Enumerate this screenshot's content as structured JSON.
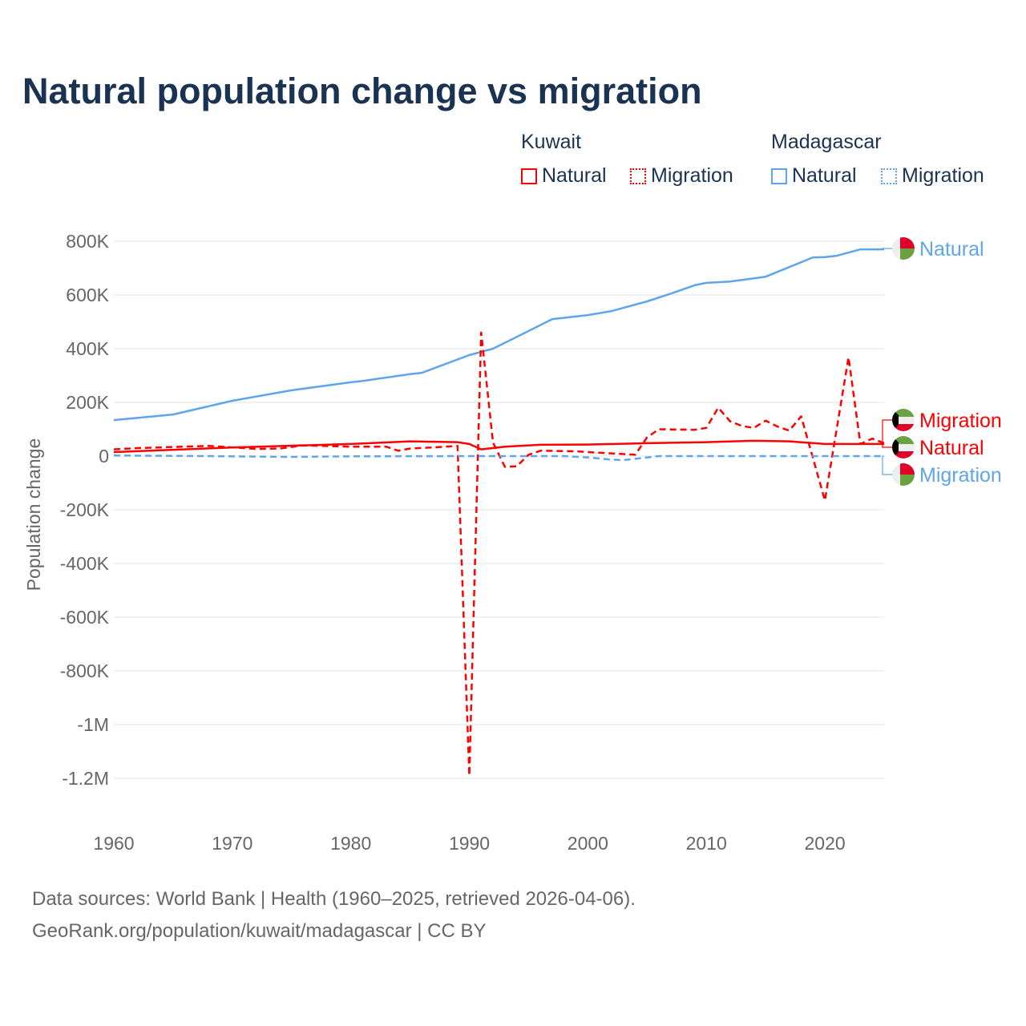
{
  "chart_data": {
    "type": "line",
    "title": "Natural population change vs migration",
    "ylabel": "Population change",
    "xlabel": "",
    "xlim": [
      1960,
      2025
    ],
    "ylim": [
      -1200000,
      800000
    ],
    "xticks": [
      1960,
      1970,
      1980,
      1990,
      2000,
      2010,
      2020
    ],
    "xtick_labels": [
      "1960",
      "1970",
      "1980",
      "1990",
      "2000",
      "2010",
      "2020"
    ],
    "yticks": [
      800000,
      600000,
      400000,
      200000,
      0,
      -200000,
      -400000,
      -600000,
      -800000,
      -1000000,
      -1200000
    ],
    "ytick_labels": [
      "800K",
      "600K",
      "400K",
      "200K",
      "0",
      "-200K",
      "-400K",
      "-600K",
      "-800K",
      "-1M",
      "-1.2M"
    ],
    "legend": {
      "groups": [
        {
          "country": "Kuwait",
          "items": [
            "Natural",
            "Migration"
          ]
        },
        {
          "country": "Madagascar",
          "items": [
            "Natural",
            "Migration"
          ]
        }
      ],
      "placement": "top-right"
    },
    "series": [
      {
        "name": "Madagascar Natural",
        "country": "Madagascar",
        "kind": "Natural",
        "color": "#5ea5eb",
        "dash": false,
        "x": [
          1960,
          1965,
          1970,
          1975,
          1980,
          1981,
          1985,
          1986,
          1990,
          1992,
          1995,
          1997,
          2000,
          2002,
          2005,
          2007,
          2009,
          2010,
          2012,
          2015,
          2017,
          2019,
          2020,
          2021,
          2023,
          2025
        ],
        "y": [
          134000,
          155000,
          206000,
          245000,
          275000,
          280000,
          305000,
          310000,
          376000,
          400000,
          466000,
          510000,
          525000,
          540000,
          576000,
          605000,
          636000,
          645000,
          650000,
          668000,
          704000,
          740000,
          741000,
          746000,
          770000,
          770000
        ]
      },
      {
        "name": "Kuwait Natural",
        "country": "Kuwait",
        "kind": "Natural",
        "color": "#ff0000",
        "dash": false,
        "x": [
          1960,
          1970,
          1980,
          1985,
          1989,
          1990,
          1991,
          1993,
          1996,
          2000,
          2005,
          2010,
          2014,
          2017,
          2020,
          2025
        ],
        "y": [
          15000,
          32000,
          45000,
          55000,
          52000,
          45000,
          25000,
          35000,
          42000,
          43000,
          48000,
          52000,
          57000,
          55000,
          45000,
          45000
        ]
      },
      {
        "name": "Kuwait Migration",
        "country": "Kuwait",
        "kind": "Migration",
        "color": "#ff0000",
        "dash": true,
        "x": [
          1960,
          1962,
          1968,
          1972,
          1974,
          1976,
          1980,
          1983,
          1984,
          1985,
          1988,
          1989,
          1990,
          1991,
          1992,
          1993,
          1994,
          1995,
          1996,
          1999,
          2000,
          2004,
          2005,
          2006,
          2009,
          2010,
          2011,
          2012,
          2013,
          2014,
          2015,
          2016,
          2017,
          2018,
          2020,
          2022,
          2023,
          2024,
          2025
        ],
        "y": [
          25000,
          30000,
          38000,
          27000,
          28000,
          40000,
          35000,
          35000,
          20000,
          28000,
          35000,
          38000,
          -1190000,
          460000,
          50000,
          -40000,
          -38000,
          5000,
          20000,
          18000,
          15000,
          5000,
          70000,
          100000,
          98000,
          105000,
          180000,
          130000,
          112000,
          105000,
          132000,
          110000,
          95000,
          148000,
          -165000,
          368000,
          45000,
          65000,
          48000
        ]
      },
      {
        "name": "Madagascar Migration",
        "country": "Madagascar",
        "kind": "Migration",
        "color": "#5ea5eb",
        "dash": true,
        "x": [
          1960,
          1968,
          1975,
          1980,
          1990,
          1998,
          2000,
          2002,
          2003,
          2004,
          2006,
          2010,
          2025
        ],
        "y": [
          2000,
          0,
          -3000,
          -1000,
          0,
          0,
          -5000,
          -13000,
          -15000,
          -10000,
          0,
          0,
          0
        ]
      }
    ],
    "end_labels": [
      {
        "series": "Madagascar Natural",
        "label": "Natural",
        "flag": "madagascar"
      },
      {
        "series": "Kuwait Migration",
        "label": "Migration",
        "flag": "kuwait"
      },
      {
        "series": "Kuwait Natural",
        "label": "Natural",
        "flag": "kuwait"
      },
      {
        "series": "Madagascar Migration",
        "label": "Migration",
        "flag": "madagascar"
      }
    ]
  },
  "legend": {
    "kuwait": "Kuwait",
    "madagascar": "Madagascar",
    "natural": "Natural",
    "migration": "Migration"
  },
  "footer": {
    "line1": "Data sources: World Bank | Health (1960–2025, retrieved 2026-04-06).",
    "line2": "GeoRank.org/population/kuwait/madagascar | CC BY"
  },
  "colors": {
    "kuwait": "#ff0000",
    "madagascar": "#5ea5eb",
    "title": "#1a3352"
  }
}
